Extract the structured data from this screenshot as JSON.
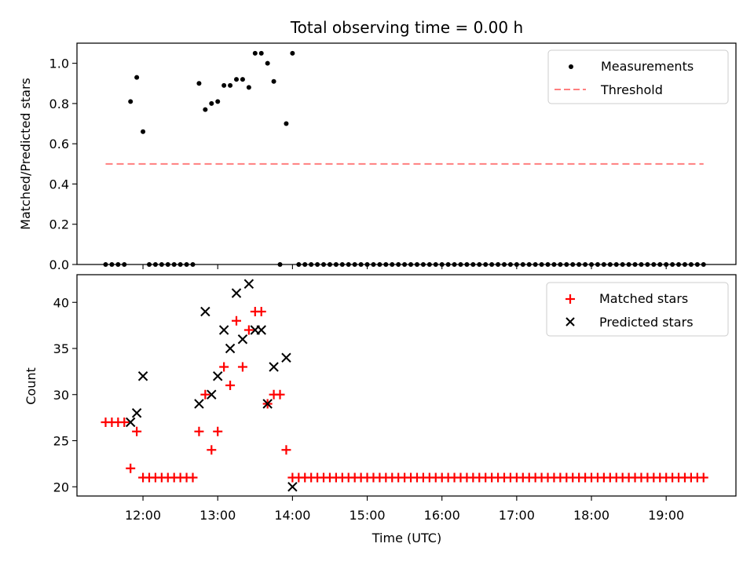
{
  "chart_data": [
    {
      "type": "scatter",
      "title": "Total observing time = 0.00 h",
      "xlabel": "",
      "ylabel": "Matched/Predicted stars",
      "ylim": [
        0.0,
        1.1
      ],
      "yticks": [
        0.0,
        0.2,
        0.4,
        0.6,
        0.8,
        1.0
      ],
      "ytick_labels": [
        "0.0",
        "0.2",
        "0.4",
        "0.6",
        "0.8",
        "1.0"
      ],
      "xlim": [
        "11:07",
        "19:56"
      ],
      "legend_position": "upper right",
      "grid": false,
      "series": [
        {
          "name": "Measurements",
          "marker": "dot",
          "color": "#000000",
          "x": [
            "11:30",
            "11:35",
            "11:40",
            "11:45",
            "11:50",
            "11:55",
            "12:00",
            "12:05",
            "12:10",
            "12:15",
            "12:20",
            "12:25",
            "12:30",
            "12:35",
            "12:40",
            "12:45",
            "12:50",
            "12:55",
            "13:00",
            "13:05",
            "13:10",
            "13:15",
            "13:20",
            "13:25",
            "13:30",
            "13:35",
            "13:40",
            "13:45",
            "13:50",
            "13:55",
            "14:00",
            "14:05",
            "14:10",
            "14:15",
            "14:20",
            "14:25",
            "14:30",
            "14:35",
            "14:40",
            "14:45",
            "14:50",
            "14:55",
            "15:00",
            "15:05",
            "15:10",
            "15:15",
            "15:20",
            "15:25",
            "15:30",
            "15:35",
            "15:40",
            "15:45",
            "15:50",
            "15:55",
            "16:00",
            "16:05",
            "16:10",
            "16:15",
            "16:20",
            "16:25",
            "16:30",
            "16:35",
            "16:40",
            "16:45",
            "16:50",
            "16:55",
            "17:00",
            "17:05",
            "17:10",
            "17:15",
            "17:20",
            "17:25",
            "17:30",
            "17:35",
            "17:40",
            "17:45",
            "17:50",
            "17:55",
            "18:00",
            "18:05",
            "18:10",
            "18:15",
            "18:20",
            "18:25",
            "18:30",
            "18:35",
            "18:40",
            "18:45",
            "18:50",
            "18:55",
            "19:00",
            "19:05",
            "19:10",
            "19:15",
            "19:20",
            "19:25",
            "19:30"
          ],
          "y": [
            0,
            0,
            0,
            0,
            0.81,
            0.93,
            0.66,
            0,
            0,
            0,
            0,
            0,
            0,
            0,
            0,
            0.9,
            0.77,
            0.8,
            0.81,
            0.89,
            0.89,
            0.92,
            0.92,
            0.88,
            1.05,
            1.05,
            1.0,
            0.91,
            0,
            0.7,
            1.05,
            0,
            0,
            0,
            0,
            0,
            0,
            0,
            0,
            0,
            0,
            0,
            0,
            0,
            0,
            0,
            0,
            0,
            0,
            0,
            0,
            0,
            0,
            0,
            0,
            0,
            0,
            0,
            0,
            0,
            0,
            0,
            0,
            0,
            0,
            0,
            0,
            0,
            0,
            0,
            0,
            0,
            0,
            0,
            0,
            0,
            0,
            0,
            0,
            0,
            0,
            0,
            0,
            0,
            0,
            0,
            0,
            0,
            0,
            0,
            0,
            0,
            0,
            0,
            0,
            0,
            0
          ]
        },
        {
          "name": "Threshold",
          "marker": "dashed-line",
          "color": "#ff7f7f",
          "x": [
            "11:30",
            "19:30"
          ],
          "y": [
            0.5,
            0.5
          ]
        }
      ]
    },
    {
      "type": "scatter",
      "title": "",
      "xlabel": "Time (UTC)",
      "ylabel": "Count",
      "ylim": [
        19,
        43
      ],
      "yticks": [
        20,
        25,
        30,
        35,
        40
      ],
      "ytick_labels": [
        "20",
        "25",
        "30",
        "35",
        "40"
      ],
      "xticks": [
        "12:00",
        "13:00",
        "14:00",
        "15:00",
        "16:00",
        "17:00",
        "18:00",
        "19:00"
      ],
      "xtick_labels": [
        "12:00",
        "13:00",
        "14:00",
        "15:00",
        "16:00",
        "17:00",
        "18:00",
        "19:00"
      ],
      "xlim": [
        "11:07",
        "19:56"
      ],
      "legend_position": "upper right",
      "grid": false,
      "series": [
        {
          "name": "Matched stars",
          "marker": "plus",
          "color": "#ff0000",
          "x": [
            "11:30",
            "11:35",
            "11:40",
            "11:45",
            "11:50",
            "11:55",
            "12:00",
            "12:05",
            "12:10",
            "12:15",
            "12:20",
            "12:25",
            "12:30",
            "12:35",
            "12:40",
            "12:45",
            "12:50",
            "12:55",
            "13:00",
            "13:05",
            "13:10",
            "13:15",
            "13:20",
            "13:25",
            "13:30",
            "13:35",
            "13:40",
            "13:45",
            "13:50",
            "13:55",
            "14:00",
            "14:05",
            "14:10",
            "14:15",
            "14:20",
            "14:25",
            "14:30",
            "14:35",
            "14:40",
            "14:45",
            "14:50",
            "14:55",
            "15:00",
            "15:05",
            "15:10",
            "15:15",
            "15:20",
            "15:25",
            "15:30",
            "15:35",
            "15:40",
            "15:45",
            "15:50",
            "15:55",
            "16:00",
            "16:05",
            "16:10",
            "16:15",
            "16:20",
            "16:25",
            "16:30",
            "16:35",
            "16:40",
            "16:45",
            "16:50",
            "16:55",
            "17:00",
            "17:05",
            "17:10",
            "17:15",
            "17:20",
            "17:25",
            "17:30",
            "17:35",
            "17:40",
            "17:45",
            "17:50",
            "17:55",
            "18:00",
            "18:05",
            "18:10",
            "18:15",
            "18:20",
            "18:25",
            "18:30",
            "18:35",
            "18:40",
            "18:45",
            "18:50",
            "18:55",
            "19:00",
            "19:05",
            "19:10",
            "19:15",
            "19:20",
            "19:25",
            "19:30"
          ],
          "y": [
            27,
            27,
            27,
            27,
            22,
            26,
            21,
            21,
            21,
            21,
            21,
            21,
            21,
            21,
            21,
            26,
            30,
            24,
            26,
            33,
            31,
            38,
            33,
            37,
            39,
            39,
            29,
            30,
            30,
            24,
            21,
            21,
            21,
            21,
            21,
            21,
            21,
            21,
            21,
            21,
            21,
            21,
            21,
            21,
            21,
            21,
            21,
            21,
            21,
            21,
            21,
            21,
            21,
            21,
            21,
            21,
            21,
            21,
            21,
            21,
            21,
            21,
            21,
            21,
            21,
            21,
            21,
            21,
            21,
            21,
            21,
            21,
            21,
            21,
            21,
            21,
            21,
            21,
            21,
            21,
            21,
            21,
            21,
            21,
            21,
            21,
            21,
            21,
            21,
            21,
            21,
            21,
            21,
            21,
            21,
            21,
            21
          ]
        },
        {
          "name": "Predicted stars",
          "marker": "x",
          "color": "#000000",
          "x": [
            "11:50",
            "11:55",
            "12:00",
            "12:45",
            "12:50",
            "12:55",
            "13:00",
            "13:05",
            "13:10",
            "13:15",
            "13:20",
            "13:25",
            "13:30",
            "13:35",
            "13:40",
            "13:45",
            "13:55",
            "14:00"
          ],
          "y": [
            27,
            28,
            32,
            29,
            39,
            30,
            32,
            37,
            35,
            41,
            36,
            42,
            37,
            37,
            29,
            33,
            34,
            20
          ]
        }
      ]
    }
  ]
}
